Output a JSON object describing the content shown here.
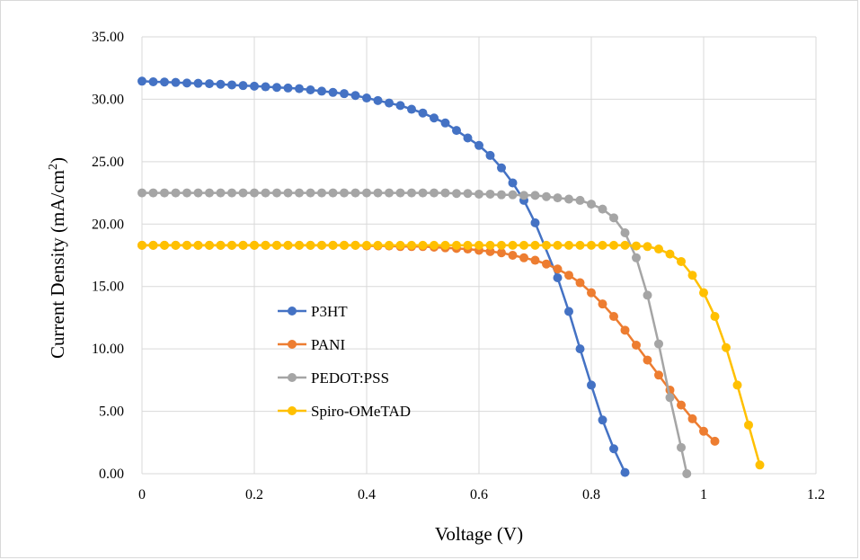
{
  "chart_data": {
    "type": "line",
    "title": "",
    "xlabel": "Voltage (V)",
    "ylabel_main": "Current Density (mA/cm",
    "ylabel_sup": "2",
    "ylabel_end": ")",
    "xlim": [
      0,
      1.2
    ],
    "ylim": [
      0,
      35
    ],
    "x_ticks": [
      "0",
      "0.2",
      "0.4",
      "0.6",
      "0.8",
      "1",
      "1.2"
    ],
    "y_ticks": [
      "0.00",
      "5.00",
      "10.00",
      "15.00",
      "20.00",
      "25.00",
      "30.00",
      "35.00"
    ],
    "grid": true,
    "legend_position": "left",
    "series": [
      {
        "name": "P3HT",
        "color": "#4472C4",
        "x": [
          0,
          0.02,
          0.04,
          0.06,
          0.08,
          0.1,
          0.12,
          0.14,
          0.16,
          0.18,
          0.2,
          0.22,
          0.24,
          0.26,
          0.28,
          0.3,
          0.32,
          0.34,
          0.36,
          0.38,
          0.4,
          0.42,
          0.44,
          0.46,
          0.48,
          0.5,
          0.52,
          0.54,
          0.56,
          0.58,
          0.6,
          0.62,
          0.64,
          0.66,
          0.68,
          0.7,
          0.74,
          0.76,
          0.78,
          0.8,
          0.82,
          0.84,
          0.86
        ],
        "y": [
          31.45,
          31.4,
          31.38,
          31.35,
          31.3,
          31.28,
          31.25,
          31.2,
          31.15,
          31.1,
          31.05,
          31.0,
          30.95,
          30.9,
          30.85,
          30.75,
          30.65,
          30.55,
          30.45,
          30.3,
          30.1,
          29.9,
          29.7,
          29.5,
          29.2,
          28.9,
          28.5,
          28.1,
          27.5,
          26.9,
          26.3,
          25.5,
          24.5,
          23.3,
          21.9,
          20.1,
          15.7,
          13.0,
          10.0,
          7.1,
          4.3,
          2.0,
          0.1
        ]
      },
      {
        "name": "PANI",
        "color": "#ED7D31",
        "x": [
          0,
          0.02,
          0.04,
          0.06,
          0.08,
          0.1,
          0.12,
          0.14,
          0.16,
          0.18,
          0.2,
          0.22,
          0.24,
          0.26,
          0.28,
          0.3,
          0.32,
          0.34,
          0.36,
          0.38,
          0.4,
          0.42,
          0.44,
          0.46,
          0.48,
          0.5,
          0.52,
          0.54,
          0.56,
          0.58,
          0.6,
          0.62,
          0.64,
          0.66,
          0.68,
          0.7,
          0.72,
          0.74,
          0.76,
          0.78,
          0.8,
          0.82,
          0.84,
          0.86,
          0.88,
          0.9,
          0.92,
          0.94,
          0.96,
          0.98,
          1.0,
          1.02
        ],
        "y": [
          18.3,
          18.3,
          18.3,
          18.3,
          18.3,
          18.3,
          18.3,
          18.3,
          18.3,
          18.3,
          18.3,
          18.3,
          18.3,
          18.3,
          18.3,
          18.3,
          18.3,
          18.3,
          18.3,
          18.3,
          18.25,
          18.25,
          18.25,
          18.2,
          18.2,
          18.2,
          18.15,
          18.1,
          18.05,
          18.0,
          17.9,
          17.8,
          17.7,
          17.5,
          17.3,
          17.1,
          16.8,
          16.4,
          15.9,
          15.3,
          14.5,
          13.6,
          12.6,
          11.5,
          10.3,
          9.1,
          7.9,
          6.7,
          5.5,
          4.4,
          3.4,
          2.6
        ]
      },
      {
        "name": "PEDOT:PSS",
        "color": "#A5A5A5",
        "x": [
          0,
          0.02,
          0.04,
          0.06,
          0.08,
          0.1,
          0.12,
          0.14,
          0.16,
          0.18,
          0.2,
          0.22,
          0.24,
          0.26,
          0.28,
          0.3,
          0.32,
          0.34,
          0.36,
          0.38,
          0.4,
          0.42,
          0.44,
          0.46,
          0.48,
          0.5,
          0.52,
          0.54,
          0.56,
          0.58,
          0.6,
          0.62,
          0.64,
          0.66,
          0.68,
          0.7,
          0.72,
          0.74,
          0.76,
          0.78,
          0.8,
          0.82,
          0.84,
          0.86,
          0.88,
          0.9,
          0.92,
          0.94,
          0.96,
          0.97
        ],
        "y": [
          22.5,
          22.5,
          22.5,
          22.5,
          22.5,
          22.5,
          22.5,
          22.5,
          22.5,
          22.5,
          22.5,
          22.5,
          22.5,
          22.5,
          22.5,
          22.5,
          22.5,
          22.5,
          22.5,
          22.5,
          22.5,
          22.5,
          22.5,
          22.5,
          22.5,
          22.5,
          22.5,
          22.5,
          22.45,
          22.45,
          22.4,
          22.4,
          22.35,
          22.35,
          22.3,
          22.3,
          22.2,
          22.1,
          22.0,
          21.9,
          21.6,
          21.2,
          20.5,
          19.3,
          17.3,
          14.3,
          10.4,
          6.1,
          2.1,
          0.0
        ]
      },
      {
        "name": "Spiro-OMeTAD",
        "color": "#FFC000",
        "x": [
          0,
          0.02,
          0.04,
          0.06,
          0.08,
          0.1,
          0.12,
          0.14,
          0.16,
          0.18,
          0.2,
          0.22,
          0.24,
          0.26,
          0.28,
          0.3,
          0.32,
          0.34,
          0.36,
          0.38,
          0.4,
          0.42,
          0.44,
          0.46,
          0.48,
          0.5,
          0.52,
          0.54,
          0.56,
          0.58,
          0.6,
          0.62,
          0.64,
          0.66,
          0.68,
          0.7,
          0.72,
          0.74,
          0.76,
          0.78,
          0.8,
          0.82,
          0.84,
          0.86,
          0.88,
          0.9,
          0.92,
          0.94,
          0.96,
          0.98,
          1.0,
          1.02,
          1.04,
          1.06,
          1.08,
          1.1
        ],
        "y": [
          18.3,
          18.3,
          18.3,
          18.3,
          18.3,
          18.3,
          18.3,
          18.3,
          18.3,
          18.3,
          18.3,
          18.3,
          18.3,
          18.3,
          18.3,
          18.3,
          18.3,
          18.3,
          18.3,
          18.3,
          18.3,
          18.3,
          18.3,
          18.3,
          18.3,
          18.3,
          18.3,
          18.3,
          18.3,
          18.3,
          18.3,
          18.3,
          18.3,
          18.3,
          18.3,
          18.3,
          18.3,
          18.3,
          18.3,
          18.3,
          18.3,
          18.3,
          18.3,
          18.3,
          18.25,
          18.2,
          18.0,
          17.6,
          17.0,
          15.9,
          14.5,
          12.6,
          10.1,
          7.1,
          3.9,
          0.7
        ]
      }
    ]
  }
}
